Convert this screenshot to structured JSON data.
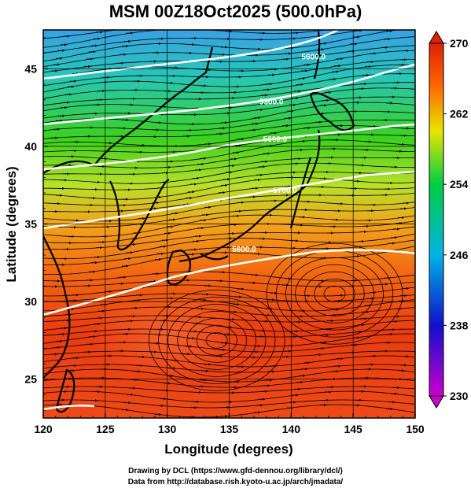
{
  "title": "MSM 00Z18Oct2025 (500.0hPa)",
  "chart_data": {
    "type": "heatmap",
    "x_axis": {
      "label": "Longitude (degrees)",
      "range": [
        120,
        150
      ],
      "ticks": [
        120,
        125,
        130,
        135,
        140,
        145,
        150
      ]
    },
    "y_axis": {
      "label": "Latitude  (degrees)",
      "range": [
        22.5,
        47.5
      ],
      "ticks": [
        25,
        30,
        35,
        40,
        45
      ]
    },
    "colorbar": {
      "min": 230,
      "max": 270,
      "ticks": [
        230,
        238,
        246,
        254,
        262,
        270
      ],
      "palette": [
        "#cc00cc",
        "#1010cc",
        "#00b4e6",
        "#00cc44",
        "#e6e600",
        "#ff6600",
        "#dd2200"
      ]
    },
    "temperature_field": [
      {
        "lat": 47,
        "temp": 251
      },
      {
        "lat": 44,
        "temp": 254
      },
      {
        "lat": 41,
        "temp": 257
      },
      {
        "lat": 38,
        "temp": 259
      },
      {
        "lat": 35,
        "temp": 262
      },
      {
        "lat": 32,
        "temp": 265
      },
      {
        "lat": 29,
        "temp": 267
      },
      {
        "lat": 26,
        "temp": 268
      },
      {
        "lat": 23,
        "temp": 267
      }
    ],
    "contours": [
      {
        "label": "5600.0",
        "label_lon": 136.2,
        "label_lat": 33.2
      },
      {
        "label": "5700.0",
        "label_lon": 139.5,
        "label_lat": 37.0
      },
      {
        "label": "5600.0",
        "label_lon": 138.7,
        "label_lat": 40.3
      },
      {
        "label": "5500.0",
        "label_lon": 138.4,
        "label_lat": 42.7
      },
      {
        "label": "5600.0",
        "label_lon": 141.8,
        "label_lat": 45.6
      }
    ],
    "vortices": [
      {
        "lon": 134,
        "lat": 27.5
      },
      {
        "lon": 143.5,
        "lat": 30.5
      }
    ]
  },
  "credits": {
    "line1": "Drawing by DCL (https://www.gfd-dennou.org/library/dcl/)",
    "line2": "Data from http://database.rish.kyoto-u.ac.jp/arch/jmadata/"
  }
}
